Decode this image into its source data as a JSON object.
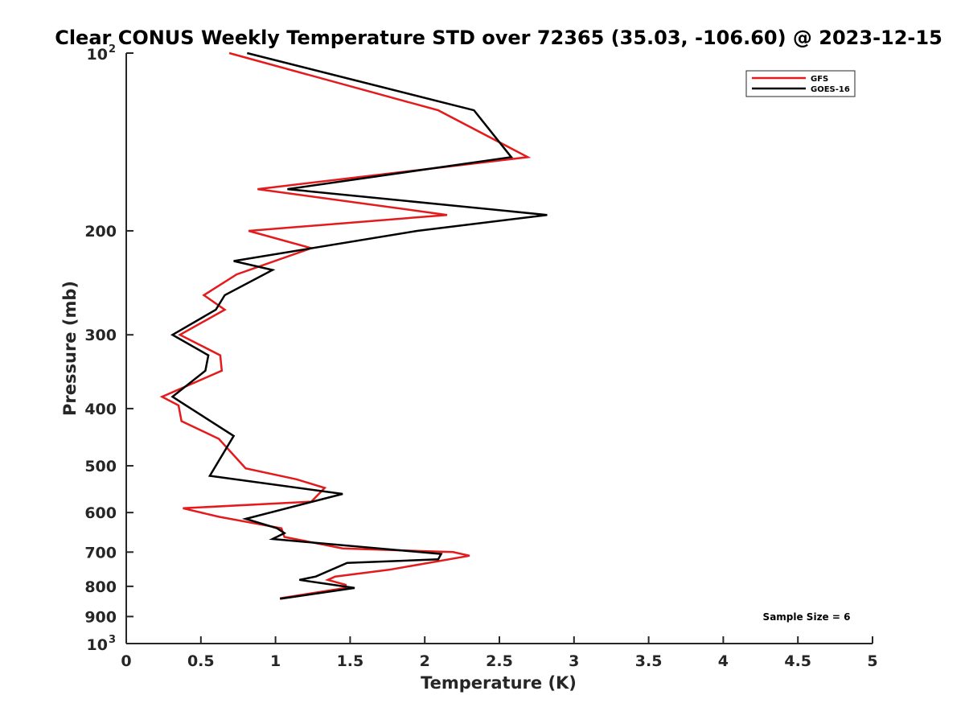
{
  "chart_data": {
    "type": "line",
    "title": "Clear CONUS Weekly Temperature STD over 72365 (35.03, -106.60) @ 2023-12-15",
    "xlabel": "Temperature (K)",
    "ylabel": "Pressure (mb)",
    "xlim": [
      0,
      5
    ],
    "ylim": [
      100,
      1000
    ],
    "y_scale": "log",
    "y_reversed": true,
    "x_ticks": [
      "0",
      "0.5",
      "1",
      "1.5",
      "2",
      "2.5",
      "3",
      "3.5",
      "4",
      "4.5",
      "5"
    ],
    "y_ticks": [
      {
        "value": 100,
        "label": "10",
        "exp": "2"
      },
      {
        "value": 200,
        "label": "200"
      },
      {
        "value": 300,
        "label": "300"
      },
      {
        "value": 400,
        "label": "400"
      },
      {
        "value": 500,
        "label": "500"
      },
      {
        "value": 600,
        "label": "600"
      },
      {
        "value": 700,
        "label": "700"
      },
      {
        "value": 800,
        "label": "800"
      },
      {
        "value": 900,
        "label": "900"
      },
      {
        "value": 1000,
        "label": "10",
        "exp": "3"
      }
    ],
    "grid": false,
    "legend_position": "top-right",
    "series": [
      {
        "name": "GFS",
        "color": "#e41a1c",
        "points": [
          [
            0.69,
            100
          ],
          [
            2.09,
            125
          ],
          [
            2.69,
            150
          ],
          [
            0.88,
            170
          ],
          [
            2.15,
            188
          ],
          [
            0.82,
            200
          ],
          [
            1.24,
            214
          ],
          [
            0.74,
            237
          ],
          [
            0.52,
            257
          ],
          [
            0.66,
            272
          ],
          [
            0.36,
            300
          ],
          [
            0.63,
            325
          ],
          [
            0.64,
            345
          ],
          [
            0.24,
            382
          ],
          [
            0.35,
            395
          ],
          [
            0.37,
            420
          ],
          [
            0.62,
            450
          ],
          [
            0.8,
            505
          ],
          [
            1.14,
            527
          ],
          [
            1.33,
            545
          ],
          [
            1.24,
            575
          ],
          [
            0.38,
            590
          ],
          [
            0.62,
            610
          ],
          [
            1.04,
            638
          ],
          [
            1.06,
            660
          ],
          [
            1.45,
            690
          ],
          [
            2.19,
            700
          ],
          [
            2.3,
            710
          ],
          [
            1.76,
            750
          ],
          [
            1.4,
            770
          ],
          [
            1.35,
            780
          ],
          [
            1.47,
            795
          ],
          [
            1.47,
            805
          ],
          [
            1.03,
            838
          ]
        ]
      },
      {
        "name": "GOES-16",
        "color": "#000000",
        "points": [
          [
            0.81,
            100
          ],
          [
            2.33,
            125
          ],
          [
            2.58,
            150
          ],
          [
            1.08,
            170
          ],
          [
            2.82,
            188
          ],
          [
            1.95,
            200
          ],
          [
            0.72,
            225
          ],
          [
            0.98,
            233
          ],
          [
            0.66,
            257
          ],
          [
            0.6,
            272
          ],
          [
            0.31,
            300
          ],
          [
            0.55,
            325
          ],
          [
            0.53,
            345
          ],
          [
            0.31,
            382
          ],
          [
            0.4,
            395
          ],
          [
            0.72,
            445
          ],
          [
            0.56,
            520
          ],
          [
            1.45,
            558
          ],
          [
            0.8,
            615
          ],
          [
            1.01,
            638
          ],
          [
            1.06,
            650
          ],
          [
            0.98,
            665
          ],
          [
            2.11,
            705
          ],
          [
            2.09,
            720
          ],
          [
            1.48,
            730
          ],
          [
            1.27,
            770
          ],
          [
            1.16,
            780
          ],
          [
            1.53,
            805
          ],
          [
            1.03,
            840
          ]
        ]
      }
    ],
    "annotations": [
      "Sample Size = 6"
    ]
  }
}
